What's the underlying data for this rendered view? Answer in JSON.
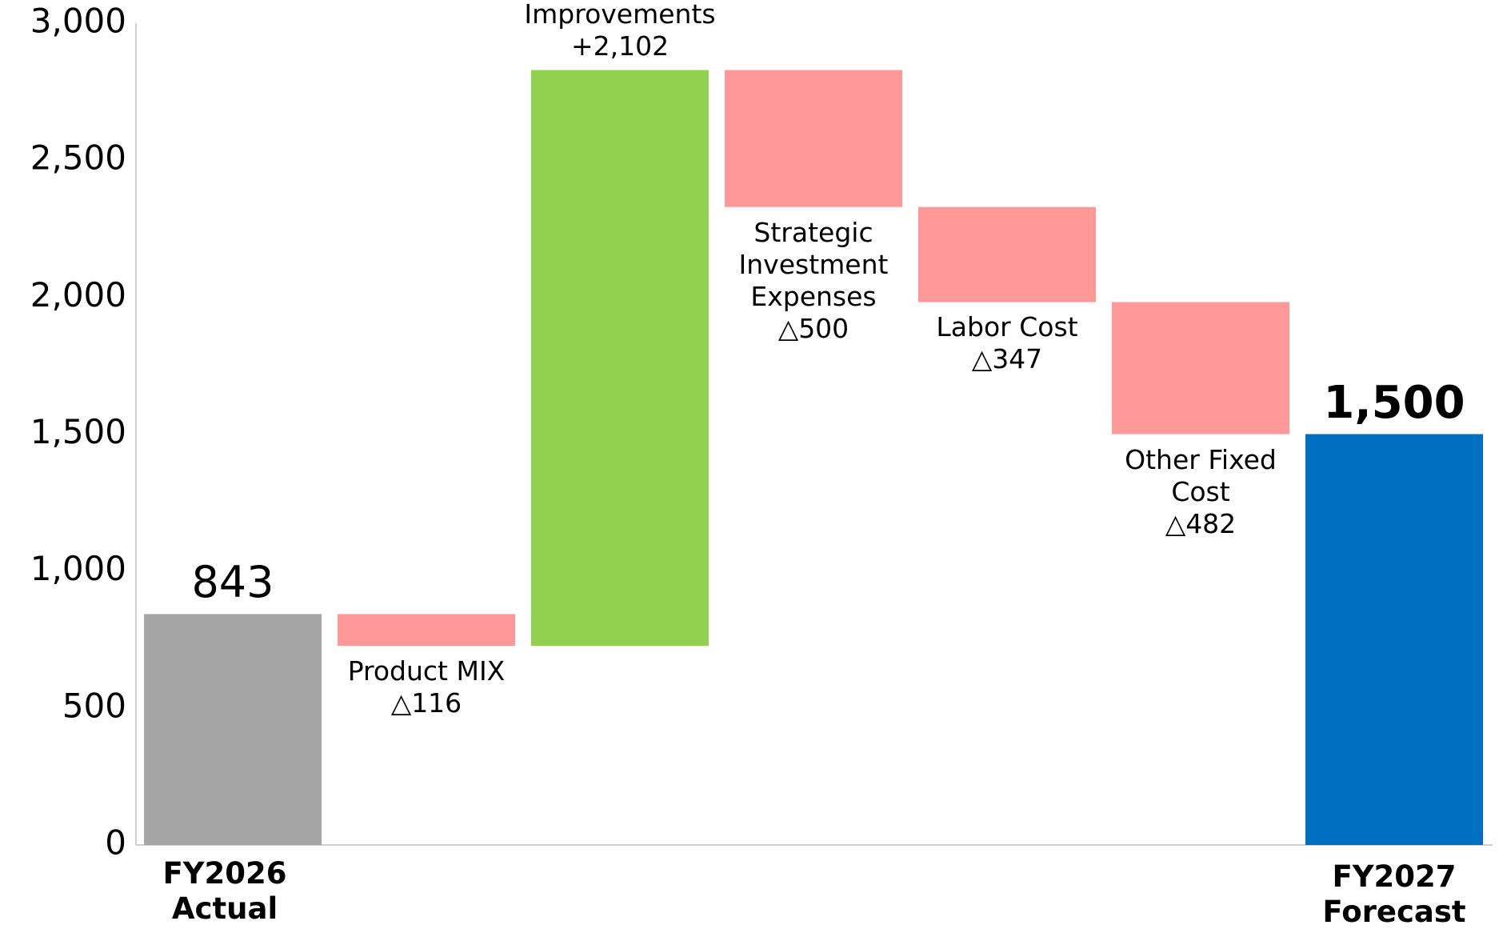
{
  "chart_data": {
    "type": "waterfall",
    "categories": [
      "FY2026 Actual",
      "Product MIX",
      "Improvements",
      "Strategic Investment Expenses",
      "Labor Cost",
      "Other Fixed Cost",
      "FY2027 Forecast"
    ],
    "values": [
      843,
      -116,
      2102,
      -500,
      -347,
      -482,
      1500
    ],
    "value_labels": [
      "843",
      "△116",
      "+2,102",
      "△500",
      "△347",
      "△482",
      "1,500"
    ],
    "measure": [
      "absolute",
      "relative",
      "relative",
      "relative",
      "relative",
      "relative",
      "total"
    ],
    "colors": [
      "#a6a6a6",
      "#ff9999",
      "#92d050",
      "#ff9999",
      "#ff9999",
      "#ff9999",
      "#0070c0"
    ],
    "ylim": [
      0,
      3000
    ],
    "yticks": [
      0,
      {
        "value": 500,
        "label": "500"
      },
      {
        "value": 1000,
        "label": "1,000"
      },
      {
        "value": 1500,
        "label": "1,500"
      },
      {
        "value": 2000,
        "label": "2,000"
      },
      {
        "value": 2500,
        "label": "2,500"
      },
      {
        "value": 3000,
        "label": "3,000"
      }
    ]
  }
}
